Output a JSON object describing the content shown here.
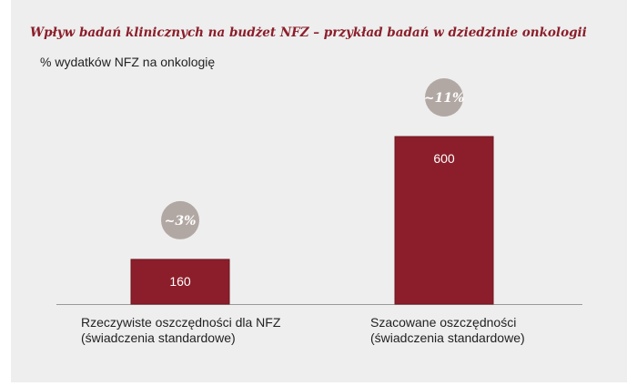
{
  "chart_data": {
    "type": "bar",
    "title": "Wpływ badań klinicznych na budżet NFZ – przykład badań w dziedzinie onkologii",
    "ylabel": "% wydatków NFZ na onkologię",
    "categories": [
      "Rzeczywiste oszczędności dla NFZ (świadczenia standardowe)",
      "Szacowane oszczędności (świadczenia standardowe)"
    ],
    "category_lines": [
      [
        "Rzeczywiste oszczędności dla NFZ",
        "(świadczenia standardowe)"
      ],
      [
        "Szacowane oszczędności",
        "(świadczenia standardowe)"
      ]
    ],
    "values": [
      160,
      600
    ],
    "value_labels": [
      "160",
      "600"
    ],
    "percent_badges": [
      "~3%",
      "~11%"
    ],
    "ylim": [
      0,
      600
    ],
    "colors": {
      "bar": "#8b1e2a",
      "bar_edge": "#6e1520",
      "badge": "#b2a8a3",
      "title": "#8b1e2a",
      "axis": "#9a9a9a"
    }
  }
}
